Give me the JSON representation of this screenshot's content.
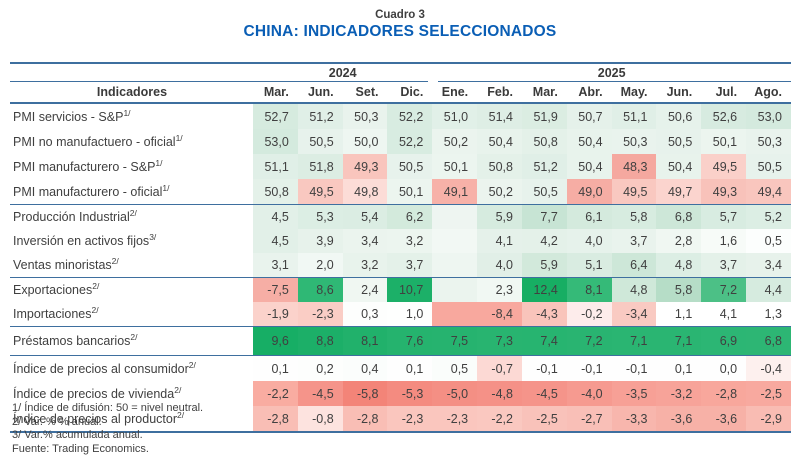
{
  "header": {
    "caption": "Cuadro 3",
    "title": "CHINA: INDICADORES SELECCIONADOS"
  },
  "colors": {
    "accent_blue": "#0a5eb5",
    "rule_blue": "#3e6f9f",
    "text": "#404040",
    "heat_green_strong": "#1cb068",
    "heat_green_light": "#d6ebdf",
    "heat_red_strong": "#f38478",
    "heat_red_light": "#fcdcd7"
  },
  "table": {
    "indicator_header": "Indicadores",
    "year_groups": [
      {
        "label": "2024",
        "span": 4
      },
      {
        "label": "2025",
        "span": 8
      }
    ],
    "months": [
      "Mar.",
      "Jun.",
      "Set.",
      "Dic.",
      "Ene.",
      "Feb.",
      "Mar.",
      "Abr.",
      "May.",
      "Jun.",
      "Jul.",
      "Ago."
    ],
    "sections": [
      {
        "name": "pmi",
        "rows": [
          {
            "label": "PMI servicios - S&P",
            "sup": "1/",
            "cells": [
              {
                "v": "52,7",
                "bg": "#d6ebdf"
              },
              {
                "v": "51,2",
                "bg": "#e0efe7"
              },
              {
                "v": "50,3",
                "bg": "#e9f3ed"
              },
              {
                "v": "52,2",
                "bg": "#d8ece1"
              },
              {
                "v": "51,0",
                "bg": "#e1f0e8"
              },
              {
                "v": "51,4",
                "bg": "#deeee5"
              },
              {
                "v": "51,9",
                "bg": "#dbede2"
              },
              {
                "v": "50,7",
                "bg": "#e5f1ea"
              },
              {
                "v": "51,1",
                "bg": "#e0efe7"
              },
              {
                "v": "50,6",
                "bg": "#e6f2eb"
              },
              {
                "v": "52,6",
                "bg": "#d7ebe0"
              },
              {
                "v": "53,0",
                "bg": "#d4eade"
              }
            ]
          },
          {
            "label": "PMI no manufactuero - oficial",
            "sup": "1/",
            "cells": [
              {
                "v": "53,0",
                "bg": "#d4eade"
              },
              {
                "v": "50,5",
                "bg": "#e7f2ec"
              },
              {
                "v": "50,0",
                "bg": "#eef6f1"
              },
              {
                "v": "52,2",
                "bg": "#d8ece1"
              },
              {
                "v": "50,2",
                "bg": "#ebf4ee"
              },
              {
                "v": "50,4",
                "bg": "#e8f3ec"
              },
              {
                "v": "50,8",
                "bg": "#e4f1e9"
              },
              {
                "v": "50,4",
                "bg": "#e8f3ec"
              },
              {
                "v": "50,3",
                "bg": "#e9f3ed"
              },
              {
                "v": "50,5",
                "bg": "#e7f2ec"
              },
              {
                "v": "50,1",
                "bg": "#ecf5ef"
              },
              {
                "v": "50,3",
                "bg": "#e9f3ed"
              }
            ]
          },
          {
            "label": "PMI manufacturero - S&P",
            "sup": "1/",
            "cells": [
              {
                "v": "51,1",
                "bg": "#e0efe7"
              },
              {
                "v": "51,8",
                "bg": "#dcede3"
              },
              {
                "v": "49,3",
                "bg": "#f9c5bd"
              },
              {
                "v": "50,5",
                "bg": "#e7f2ec"
              },
              {
                "v": "50,1",
                "bg": "#ecf5ef"
              },
              {
                "v": "50,8",
                "bg": "#e4f1e9"
              },
              {
                "v": "51,2",
                "bg": "#e0efe7"
              },
              {
                "v": "50,4",
                "bg": "#e8f3ec"
              },
              {
                "v": "48,3",
                "bg": "#f5a89f"
              },
              {
                "v": "50,4",
                "bg": "#e8f3ec"
              },
              {
                "v": "49,5",
                "bg": "#fad0c9"
              },
              {
                "v": "50,5",
                "bg": "#e7f2ec"
              }
            ]
          },
          {
            "label": "PMI manufacturero - oficial",
            "sup": "1/",
            "cells": [
              {
                "v": "50,8",
                "bg": "#e4f1e9"
              },
              {
                "v": "49,5",
                "bg": "#f9c8c0"
              },
              {
                "v": "49,8",
                "bg": "#fcdcd7"
              },
              {
                "v": "50,1",
                "bg": "#ecf5ef"
              },
              {
                "v": "49,1",
                "bg": "#f7b1a8"
              },
              {
                "v": "50,2",
                "bg": "#ebf4ee"
              },
              {
                "v": "50,5",
                "bg": "#e7f2ec"
              },
              {
                "v": "49,0",
                "bg": "#f6ada4"
              },
              {
                "v": "49,5",
                "bg": "#f9c8c0"
              },
              {
                "v": "49,7",
                "bg": "#fbd4ce"
              },
              {
                "v": "49,3",
                "bg": "#f8c2ba"
              },
              {
                "v": "49,4",
                "bg": "#f9c6be"
              }
            ]
          }
        ]
      },
      {
        "name": "actividad",
        "rows": [
          {
            "label": "Producción Industrial",
            "sup": "2/",
            "cells": [
              {
                "v": "4,5",
                "bg": "#e2f0e8"
              },
              {
                "v": "5,3",
                "bg": "#dceee4"
              },
              {
                "v": "5,4",
                "bg": "#dbede3"
              },
              {
                "v": "6,2",
                "bg": "#d3eadc"
              },
              {
                "v": "",
                "bg": "#eef5f1"
              },
              {
                "v": "5,9",
                "bg": "#d6ebdf"
              },
              {
                "v": "7,7",
                "bg": "#c7e4d4"
              },
              {
                "v": "6,1",
                "bg": "#d4eadd"
              },
              {
                "v": "5,8",
                "bg": "#d7ece0"
              },
              {
                "v": "6,8",
                "bg": "#cde7d8"
              },
              {
                "v": "5,7",
                "bg": "#d8ece1"
              },
              {
                "v": "5,2",
                "bg": "#dceee4"
              }
            ]
          },
          {
            "label": "Inversión en activos fijos",
            "sup": "3/",
            "cells": [
              {
                "v": "4,5",
                "bg": "#e2f0e8"
              },
              {
                "v": "3,9",
                "bg": "#e7f2eb"
              },
              {
                "v": "3,4",
                "bg": "#ebf4ee"
              },
              {
                "v": "3,2",
                "bg": "#ecf5ef"
              },
              {
                "v": "",
                "bg": "#f2f8f4"
              },
              {
                "v": "4,1",
                "bg": "#e5f1ea"
              },
              {
                "v": "4,2",
                "bg": "#e4f1e9"
              },
              {
                "v": "4,0",
                "bg": "#e6f2eb"
              },
              {
                "v": "3,7",
                "bg": "#e9f3ed"
              },
              {
                "v": "2,8",
                "bg": "#f0f7f2"
              },
              {
                "v": "1,6",
                "bg": "#f7fbf8"
              },
              {
                "v": "0,5",
                "bg": "#fcfefd"
              }
            ]
          },
          {
            "label": "Ventas minoristas",
            "sup": "2/",
            "cells": [
              {
                "v": "3,1",
                "bg": "#e9f3ed"
              },
              {
                "v": "2,0",
                "bg": "#f1f8f4"
              },
              {
                "v": "3,2",
                "bg": "#e8f3ec"
              },
              {
                "v": "3,7",
                "bg": "#e4f1e9"
              },
              {
                "v": "",
                "bg": "#eef6f1"
              },
              {
                "v": "4,0",
                "bg": "#e1efe7"
              },
              {
                "v": "5,9",
                "bg": "#d2e9db"
              },
              {
                "v": "5,1",
                "bg": "#d9ece1"
              },
              {
                "v": "6,4",
                "bg": "#cde7d8"
              },
              {
                "v": "4,8",
                "bg": "#dceee4"
              },
              {
                "v": "3,7",
                "bg": "#e4f1e9"
              },
              {
                "v": "3,4",
                "bg": "#e7f2eb"
              }
            ]
          }
        ]
      },
      {
        "name": "comercio-exterior",
        "rows": [
          {
            "label": "Exportaciones",
            "sup": "2/",
            "cells": [
              {
                "v": "-7,5",
                "bg": "#f6aea5"
              },
              {
                "v": "8,6",
                "bg": "#2fb875"
              },
              {
                "v": "2,4",
                "bg": "#f0f7f2"
              },
              {
                "v": "10,7",
                "bg": "#1cb068"
              },
              {
                "v": "",
                "bg": "#ebf4ee"
              },
              {
                "v": "2,3",
                "bg": "#f1f8f3"
              },
              {
                "v": "12,4",
                "bg": "#17ae63"
              },
              {
                "v": "8,1",
                "bg": "#35ba78"
              },
              {
                "v": "4,8",
                "bg": "#cfe8d9"
              },
              {
                "v": "5,8",
                "bg": "#b6ddc7"
              },
              {
                "v": "7,2",
                "bg": "#4cc086"
              },
              {
                "v": "4,4",
                "bg": "#d6ebdf"
              }
            ]
          },
          {
            "label": "Importaciones",
            "sup": "2/",
            "cells": [
              {
                "v": "-1,9",
                "bg": "#fbd2cb"
              },
              {
                "v": "-2,3",
                "bg": "#facdc5"
              },
              {
                "v": "0,3",
                "bg": "#fdfefd"
              },
              {
                "v": "1,0",
                "bg": "#fefffe"
              },
              {
                "v": "",
                "bg": "#f8a89e"
              },
              {
                "v": "-8,4",
                "bg": "#f8a89e"
              },
              {
                "v": "-4,3",
                "bg": "#f9c4bb"
              },
              {
                "v": "-0,2",
                "bg": "#fdeceb"
              },
              {
                "v": "-3,4",
                "bg": "#f9cac2"
              },
              {
                "v": "1,1",
                "bg": "#ffffff"
              },
              {
                "v": "4,1",
                "bg": "#ffffff"
              },
              {
                "v": "1,3",
                "bg": "#ffffff"
              }
            ]
          }
        ]
      },
      {
        "name": "credito",
        "rows": [
          {
            "label": "Préstamos bancarios",
            "sup": "2/",
            "cells": [
              {
                "v": "9,6",
                "bg": "#17ae65"
              },
              {
                "v": "8,8",
                "bg": "#1caf68"
              },
              {
                "v": "8,1",
                "bg": "#21b16b"
              },
              {
                "v": "7,6",
                "bg": "#25b36e"
              },
              {
                "v": "7,5",
                "bg": "#26b36f"
              },
              {
                "v": "7,3",
                "bg": "#28b470"
              },
              {
                "v": "7,4",
                "bg": "#27b470"
              },
              {
                "v": "7,2",
                "bg": "#29b471"
              },
              {
                "v": "7,1",
                "bg": "#2ab572"
              },
              {
                "v": "7,1",
                "bg": "#2ab572"
              },
              {
                "v": "6,9",
                "bg": "#2cb674"
              },
              {
                "v": "6,8",
                "bg": "#2db674"
              }
            ]
          }
        ]
      },
      {
        "name": "precios",
        "rows": [
          {
            "label": "Índice de precios al consumidor",
            "sup": "2/",
            "cells": [
              {
                "v": "0,1",
                "bg": "#fefefe"
              },
              {
                "v": "0,2",
                "bg": "#fdfefd"
              },
              {
                "v": "0,4",
                "bg": "#fbfdfc"
              },
              {
                "v": "0,1",
                "bg": "#fefefe"
              },
              {
                "v": "0,5",
                "bg": "#fafdfb"
              },
              {
                "v": "-0,7",
                "bg": "#fcd9d4"
              },
              {
                "v": "-0,1",
                "bg": "#fefefe"
              },
              {
                "v": "-0,1",
                "bg": "#fefefe"
              },
              {
                "v": "-0,1",
                "bg": "#fefefe"
              },
              {
                "v": "0,1",
                "bg": "#fefefe"
              },
              {
                "v": "0,0",
                "bg": "#fefefe"
              },
              {
                "v": "-0,4",
                "bg": "#fdf0ee"
              }
            ]
          },
          {
            "label": "Índice de precios de vivienda",
            "sup": "2/",
            "cells": [
              {
                "v": "-2,2",
                "bg": "#f9aca1"
              },
              {
                "v": "-4,5",
                "bg": "#f5948a"
              },
              {
                "v": "-5,8",
                "bg": "#f38478"
              },
              {
                "v": "-5,3",
                "bg": "#f48b80"
              },
              {
                "v": "-5,0",
                "bg": "#f48f84"
              },
              {
                "v": "-4,8",
                "bg": "#f59187"
              },
              {
                "v": "-4,5",
                "bg": "#f5948a"
              },
              {
                "v": "-4,0",
                "bg": "#f69a90"
              },
              {
                "v": "-3,5",
                "bg": "#f7a096"
              },
              {
                "v": "-3,2",
                "bg": "#f7a399"
              },
              {
                "v": "-2,8",
                "bg": "#f8a79c"
              },
              {
                "v": "-2,5",
                "bg": "#f8a99f"
              }
            ]
          },
          {
            "label": "Índice de precios al productor",
            "sup": "2/",
            "cells": [
              {
                "v": "-2,8",
                "bg": "#f9beb5"
              },
              {
                "v": "-0,8",
                "bg": "#fde3df"
              },
              {
                "v": "-2,8",
                "bg": "#f9beb5"
              },
              {
                "v": "-2,3",
                "bg": "#fac6be"
              },
              {
                "v": "-2,3",
                "bg": "#fac6be"
              },
              {
                "v": "-2,2",
                "bg": "#fac8c0"
              },
              {
                "v": "-2,5",
                "bg": "#f9c2ba"
              },
              {
                "v": "-2,7",
                "bg": "#f9bfb7"
              },
              {
                "v": "-3,3",
                "bg": "#f8b6ad"
              },
              {
                "v": "-3,6",
                "bg": "#f7b1a7"
              },
              {
                "v": "-3,6",
                "bg": "#f7b1a7"
              },
              {
                "v": "-2,9",
                "bg": "#f9bcb3"
              }
            ]
          }
        ]
      }
    ]
  },
  "notes": [
    "1/ Índice de difusión: 50 = nivel neutral.",
    "2/ Var. % % anual.",
    "3/ Var.% acumulada anual.",
    "Fuente: Trading Economics."
  ]
}
